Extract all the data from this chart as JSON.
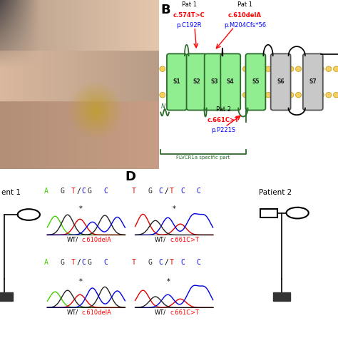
{
  "bg_color": "#ffffff",
  "panel_B_label": "B",
  "panel_D_label": "D",
  "segments_green": [
    "S1",
    "S2",
    "S3",
    "S4",
    "S5"
  ],
  "segments_gray": [
    "S6",
    "S7"
  ],
  "pat1_label1": "Pat 1",
  "pat1_mut1_red": "c.574T>C",
  "pat1_mut1_blue": "p.C192R",
  "pat1_label2": "Pat 1",
  "pat1_mut2_red": "c.610delA",
  "pat1_mut2_blue": "p.M204Cfs*56",
  "pat2_label": "Pat 2",
  "pat2_mut_red": "c.661C>T",
  "pat2_mut_blue": "p.P221S",
  "flvcr_label": "FLVCR1a specific part",
  "patient1_label": "ent 1",
  "patient2_label": "Patient 2"
}
